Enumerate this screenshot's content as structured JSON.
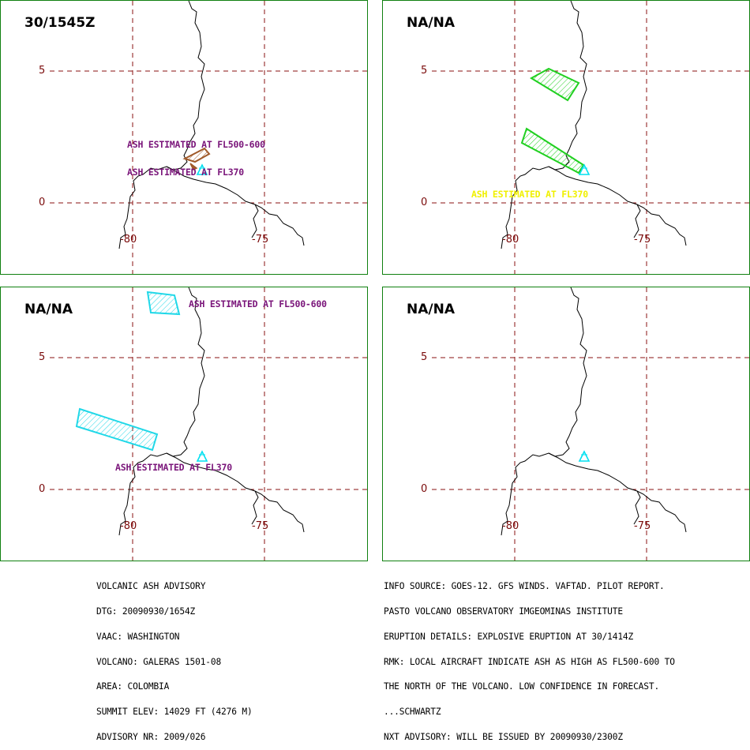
{
  "panels": [
    {
      "title": "30/1545Z",
      "lat_labels": [
        "5",
        "0"
      ],
      "lon_labels": [
        "-80",
        "-75"
      ],
      "labels": [
        "ASH ESTIMATED AT FL500-600",
        "ASH ESTIMATED AT FL370"
      ]
    },
    {
      "title": "NA/NA",
      "lat_labels": [
        "5",
        "0"
      ],
      "lon_labels": [
        "-80",
        "-75"
      ],
      "labels": [
        "ASH ESTIMATED AT FL370"
      ]
    },
    {
      "title": "NA/NA",
      "lat_labels": [
        "5",
        "0"
      ],
      "lon_labels": [
        "-80",
        "-75"
      ],
      "labels": [
        "ASH ESTIMATED AT FL500-600",
        "ASH ESTIMATED AT FL370"
      ]
    },
    {
      "title": "NA/NA",
      "lat_labels": [
        "5",
        "0"
      ],
      "lon_labels": [
        "-80",
        "-75"
      ],
      "labels": []
    }
  ],
  "advisory_left": [
    "VOLCANIC ASH ADVISORY",
    "DTG: 20090930/1654Z",
    "VAAC: WASHINGTON",
    "VOLCANO: GALERAS 1501-08",
    "AREA: COLOMBIA",
    "SUMMIT ELEV: 14029 FT (4276 M)",
    "ADVISORY NR: 2009/026"
  ],
  "advisory_right": [
    "INFO SOURCE: GOES-12. GFS WINDS. VAFTAD. PILOT REPORT.",
    "PASTO VOLCANO OBSERVATORY IMGEOMINAS INSTITUTE",
    "ERUPTION DETAILS: EXPLOSIVE ERUPTION AT 30/1414Z",
    "RMK: LOCAL AIRCRAFT INDICATE ASH AS HIGH AS FL500-600 TO",
    "THE NORTH OF THE VOLCANO. LOW CONFIDENCE IN FORECAST.",
    "...SCHWARTZ",
    "NXT ADVISORY: WILL BE ISSUED BY 20090930/2300Z"
  ],
  "colors": {
    "border": "#108010",
    "grid": "#8a1010",
    "coast": "#000000",
    "volcano": "#00e0f0",
    "ash_fl500_panel1": "#a05a2a",
    "ash_panel2": "#20d020",
    "ash_panel3": "#20d8e8",
    "label_purple": "#7a157a",
    "label_yellow": "#f0f000"
  }
}
